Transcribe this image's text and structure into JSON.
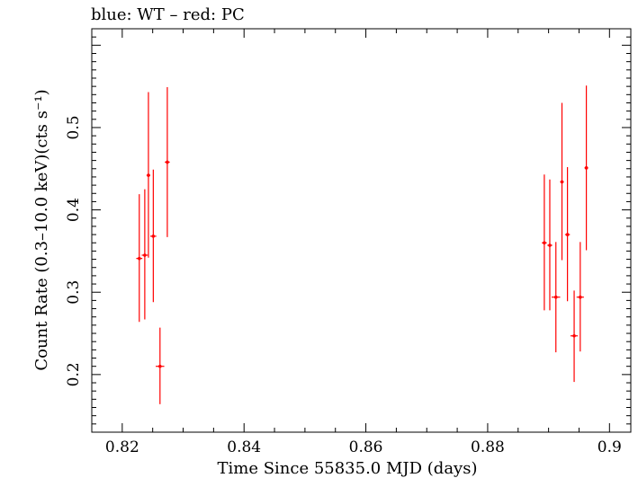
{
  "chart_data": {
    "type": "scatter",
    "title": "blue: WT – red: PC",
    "xlabel": "Time Since 55835.0 MJD (days)",
    "ylabel": "Count Rate (0.3–10.0 keV)(cts s⁻¹)",
    "xlim": [
      0.815,
      0.9035
    ],
    "ylim": [
      0.13,
      0.62
    ],
    "x_ticks": [
      0.82,
      0.84,
      0.86,
      0.88,
      0.9
    ],
    "x_tick_labels": [
      "0.82",
      "0.84",
      "0.86",
      "0.88",
      "0.9"
    ],
    "y_ticks": [
      0.2,
      0.3,
      0.4,
      0.5
    ],
    "y_tick_labels": [
      "0.2",
      "0.3",
      "0.4",
      "0.5"
    ],
    "series": [
      {
        "name": "PC",
        "color": "#ff0000",
        "points": [
          {
            "x": 0.8228,
            "y": 0.341,
            "ylo": 0.264,
            "yhi": 0.419,
            "xerr": 0.0005
          },
          {
            "x": 0.8237,
            "y": 0.345,
            "ylo": 0.267,
            "yhi": 0.425,
            "xerr": 0.0005
          },
          {
            "x": 0.8243,
            "y": 0.442,
            "ylo": 0.342,
            "yhi": 0.543,
            "xerr": 0.0003
          },
          {
            "x": 0.8251,
            "y": 0.368,
            "ylo": 0.288,
            "yhi": 0.449,
            "xerr": 0.0005
          },
          {
            "x": 0.8262,
            "y": 0.21,
            "ylo": 0.164,
            "yhi": 0.257,
            "xerr": 0.0007
          },
          {
            "x": 0.8274,
            "y": 0.458,
            "ylo": 0.367,
            "yhi": 0.549,
            "xerr": 0.0004
          },
          {
            "x": 0.8893,
            "y": 0.36,
            "ylo": 0.278,
            "yhi": 0.443,
            "xerr": 0.0004
          },
          {
            "x": 0.8902,
            "y": 0.357,
            "ylo": 0.278,
            "yhi": 0.437,
            "xerr": 0.0004
          },
          {
            "x": 0.8912,
            "y": 0.294,
            "ylo": 0.227,
            "yhi": 0.361,
            "xerr": 0.0007
          },
          {
            "x": 0.8922,
            "y": 0.434,
            "ylo": 0.339,
            "yhi": 0.53,
            "xerr": 0.0003
          },
          {
            "x": 0.8931,
            "y": 0.37,
            "ylo": 0.289,
            "yhi": 0.452,
            "xerr": 0.0004
          },
          {
            "x": 0.8942,
            "y": 0.247,
            "ylo": 0.191,
            "yhi": 0.302,
            "xerr": 0.0006
          },
          {
            "x": 0.8952,
            "y": 0.294,
            "ylo": 0.228,
            "yhi": 0.361,
            "xerr": 0.0006
          },
          {
            "x": 0.8962,
            "y": 0.451,
            "ylo": 0.351,
            "yhi": 0.551,
            "xerr": 0.0003
          }
        ]
      }
    ]
  }
}
